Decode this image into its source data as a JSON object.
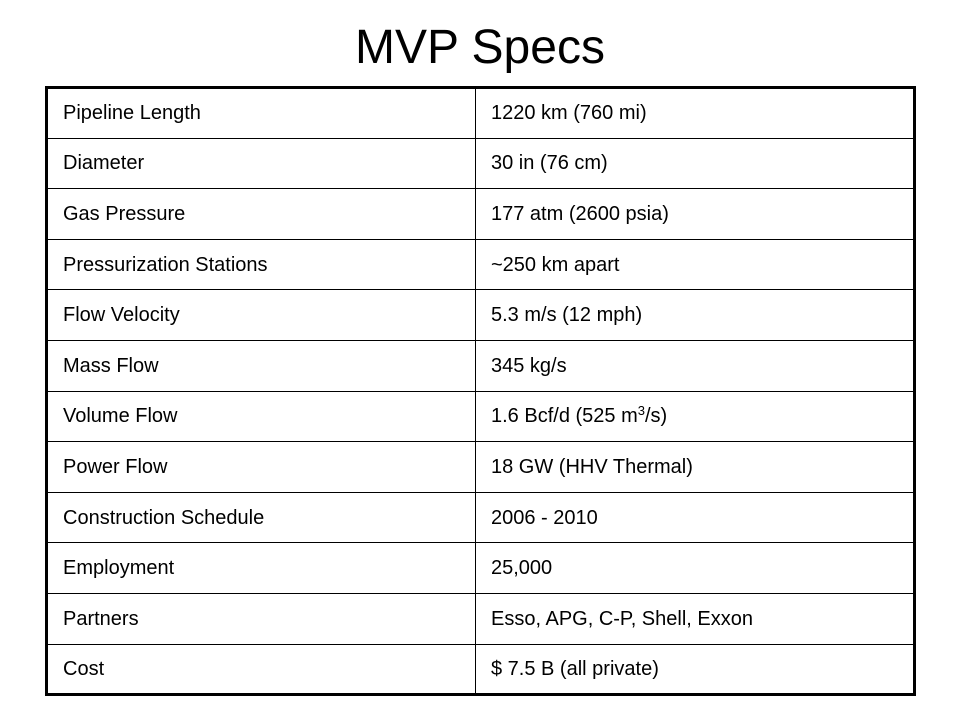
{
  "slide": {
    "title": "MVP Specs"
  },
  "specs": {
    "rows": [
      {
        "label": "Pipeline Length",
        "value": "1220 km (760 mi)"
      },
      {
        "label": "Diameter",
        "value": "30 in (76 cm)"
      },
      {
        "label": "Gas Pressure",
        "value": "177 atm (2600 psia)"
      },
      {
        "label": "Pressurization Stations",
        "value": "~250 km apart"
      },
      {
        "label": "Flow Velocity",
        "value": "5.3 m/s (12 mph)"
      },
      {
        "label": "Mass Flow",
        "value": "345 kg/s"
      },
      {
        "label": "Volume Flow",
        "value": "1.6 Bcf/d (525 m",
        "value_sup": "3",
        "value_after": "/s)"
      },
      {
        "label": "Power Flow",
        "value": "18 GW (HHV Thermal)"
      },
      {
        "label": "Construction Schedule",
        "value": "2006 - 2010"
      },
      {
        "label": "Employment",
        "value": "25,000"
      },
      {
        "label": "Partners",
        "value": "Esso, APG, C-P, Shell, Exxon"
      },
      {
        "label": "Cost",
        "value": "$ 7.5 B (all private)"
      }
    ]
  }
}
